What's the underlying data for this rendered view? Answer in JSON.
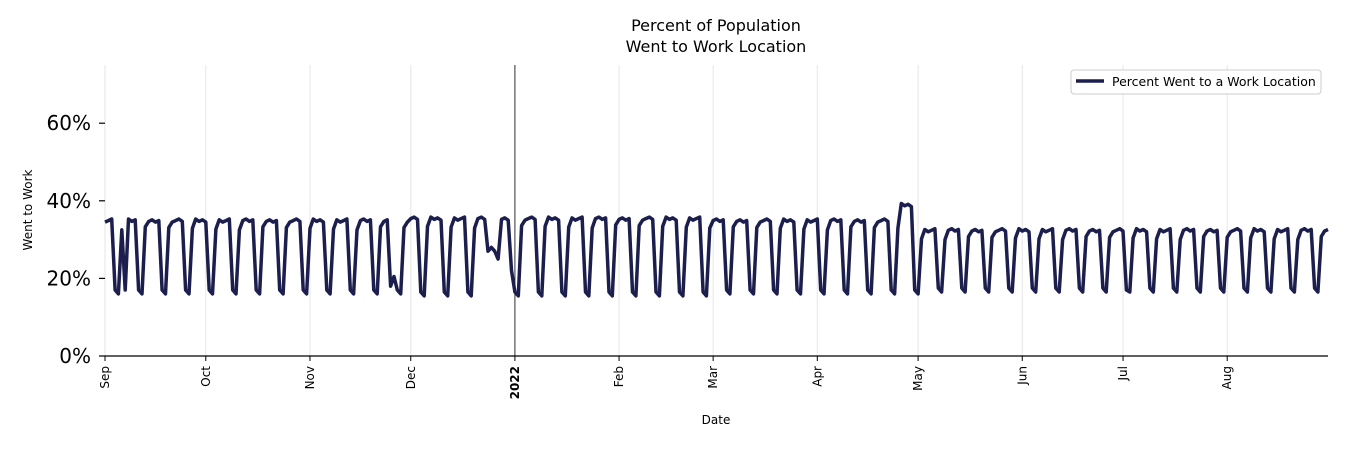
{
  "chart_data": {
    "type": "line",
    "title_line1": "Percent of Population",
    "title_line2": "Went to Work Location",
    "xlabel": "Date",
    "ylabel": "Went to Work",
    "ylim": [
      0,
      0.75
    ],
    "grid": "vertical-at-months",
    "legend_position": "top-right",
    "yticks": [
      {
        "value": 0.0,
        "label": "0%"
      },
      {
        "value": 0.2,
        "label": "20%"
      },
      {
        "value": 0.4,
        "label": "40%"
      },
      {
        "value": 0.6,
        "label": "60%"
      }
    ],
    "xticks": [
      {
        "day": 0,
        "label": "Sep",
        "bold": false
      },
      {
        "day": 30,
        "label": "Oct",
        "bold": false
      },
      {
        "day": 61,
        "label": "Nov",
        "bold": false
      },
      {
        "day": 91,
        "label": "Dec",
        "bold": false
      },
      {
        "day": 122,
        "label": "2022",
        "bold": true
      },
      {
        "day": 153,
        "label": "Feb",
        "bold": false
      },
      {
        "day": 181,
        "label": "Mar",
        "bold": false
      },
      {
        "day": 212,
        "label": "Apr",
        "bold": false
      },
      {
        "day": 242,
        "label": "May",
        "bold": false
      },
      {
        "day": 273,
        "label": "Jun",
        "bold": false
      },
      {
        "day": 303,
        "label": "Jul",
        "bold": false
      },
      {
        "day": 334,
        "label": "Aug",
        "bold": false
      }
    ],
    "x_range_days": [
      0,
      364
    ],
    "start_date": "2021-09-01",
    "year_marker_day": 122,
    "series": [
      {
        "name": "Percent Went to a Work Location",
        "color": "#1c1f4e",
        "weekly_pattern": {
          "description": "daily values; weekdays high, weekends low",
          "start_weekday": "Wed",
          "segments": [
            {
              "from_day": 0,
              "to_day": 90,
              "weekday": 0.345,
              "weekend": 0.16
            },
            {
              "from_day": 91,
              "to_day": 120,
              "weekday": 0.35,
              "weekend": 0.155
            },
            {
              "from_day": 121,
              "to_day": 180,
              "weekday": 0.35,
              "weekend": 0.155
            },
            {
              "from_day": 181,
              "to_day": 236,
              "weekday": 0.345,
              "weekend": 0.16
            },
            {
              "from_day": 237,
              "to_day": 242,
              "weekday": 0.385,
              "weekend": 0.16
            },
            {
              "from_day": 243,
              "to_day": 364,
              "weekday": 0.32,
              "weekend": 0.165
            }
          ],
          "holiday_dips": [
            {
              "day": 6,
              "value": 0.17
            },
            {
              "day": 85,
              "value": 0.18
            },
            {
              "day": 86,
              "value": 0.205
            },
            {
              "day": 114,
              "value": 0.27
            },
            {
              "day": 115,
              "value": 0.28
            },
            {
              "day": 116,
              "value": 0.27
            },
            {
              "day": 117,
              "value": 0.25
            },
            {
              "day": 121,
              "value": 0.22
            },
            {
              "day": 304,
              "value": 0.17
            }
          ]
        }
      }
    ]
  }
}
